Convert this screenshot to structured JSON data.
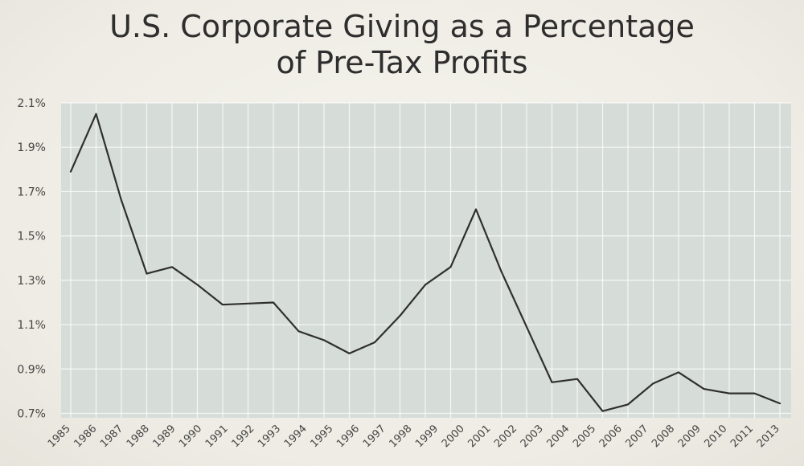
{
  "colors": {
    "background": "#f1f0e9",
    "plot_background": "#d6ddd9",
    "gridline": "#ffffff",
    "line": "#2f2f2f",
    "text": "#2e2e2e"
  },
  "chart_data": {
    "type": "line",
    "title": "U.S. Corporate Giving as a Percentage",
    "subtitle": "of Pre-Tax Profits",
    "xlabel": "",
    "ylabel": "",
    "ylim": [
      0.68,
      2.1
    ],
    "grid": true,
    "legend": "none",
    "y_ticks": [
      "2.1%",
      "1.9%",
      "1.7%",
      "1.5%",
      "1.3%",
      "1.1%",
      "0.9%",
      "0.7%"
    ],
    "y_tick_values": [
      2.1,
      1.9,
      1.7,
      1.5,
      1.3,
      1.1,
      0.9,
      0.7
    ],
    "x_ticks": [
      "1985",
      "1986",
      "1987",
      "1988",
      "1989",
      "1990",
      "1991",
      "1992",
      "1993",
      "1994",
      "1995",
      "1996",
      "1997",
      "1998",
      "1999",
      "2000",
      "2001",
      "2002",
      "2003",
      "2004",
      "2005",
      "2006",
      "2007",
      "2008",
      "2009",
      "2010",
      "2011",
      "2013"
    ],
    "series": [
      {
        "points": [
          {
            "x": 1985,
            "y": 1.79
          },
          {
            "x": 1986,
            "y": 2.05
          },
          {
            "x": 1987,
            "y": 1.66
          },
          {
            "x": 1988,
            "y": 1.33
          },
          {
            "x": 1989,
            "y": 1.36
          },
          {
            "x": 1990,
            "y": 1.28
          },
          {
            "x": 1991,
            "y": 1.19
          },
          {
            "x": 1992,
            "y": 1.195
          },
          {
            "x": 1993,
            "y": 1.2
          },
          {
            "x": 1994,
            "y": 1.07
          },
          {
            "x": 1995,
            "y": 1.03
          },
          {
            "x": 1996,
            "y": 0.97
          },
          {
            "x": 1997,
            "y": 1.02
          },
          {
            "x": 1998,
            "y": 1.14
          },
          {
            "x": 1999,
            "y": 1.28
          },
          {
            "x": 2000,
            "y": 1.36
          },
          {
            "x": 2001,
            "y": 1.62
          },
          {
            "x": 2002,
            "y": 1.34
          },
          {
            "x": 2003,
            "y": 1.09
          },
          {
            "x": 2004,
            "y": 0.84
          },
          {
            "x": 2005,
            "y": 0.855
          },
          {
            "x": 2006,
            "y": 0.71
          },
          {
            "x": 2007,
            "y": 0.74
          },
          {
            "x": 2008,
            "y": 0.835
          },
          {
            "x": 2009,
            "y": 0.885
          },
          {
            "x": 2010,
            "y": 0.81
          },
          {
            "x": 2011,
            "y": 0.79
          },
          {
            "x": 2012,
            "y": 0.79
          },
          {
            "x": 2013,
            "y": 0.745
          }
        ]
      }
    ]
  }
}
